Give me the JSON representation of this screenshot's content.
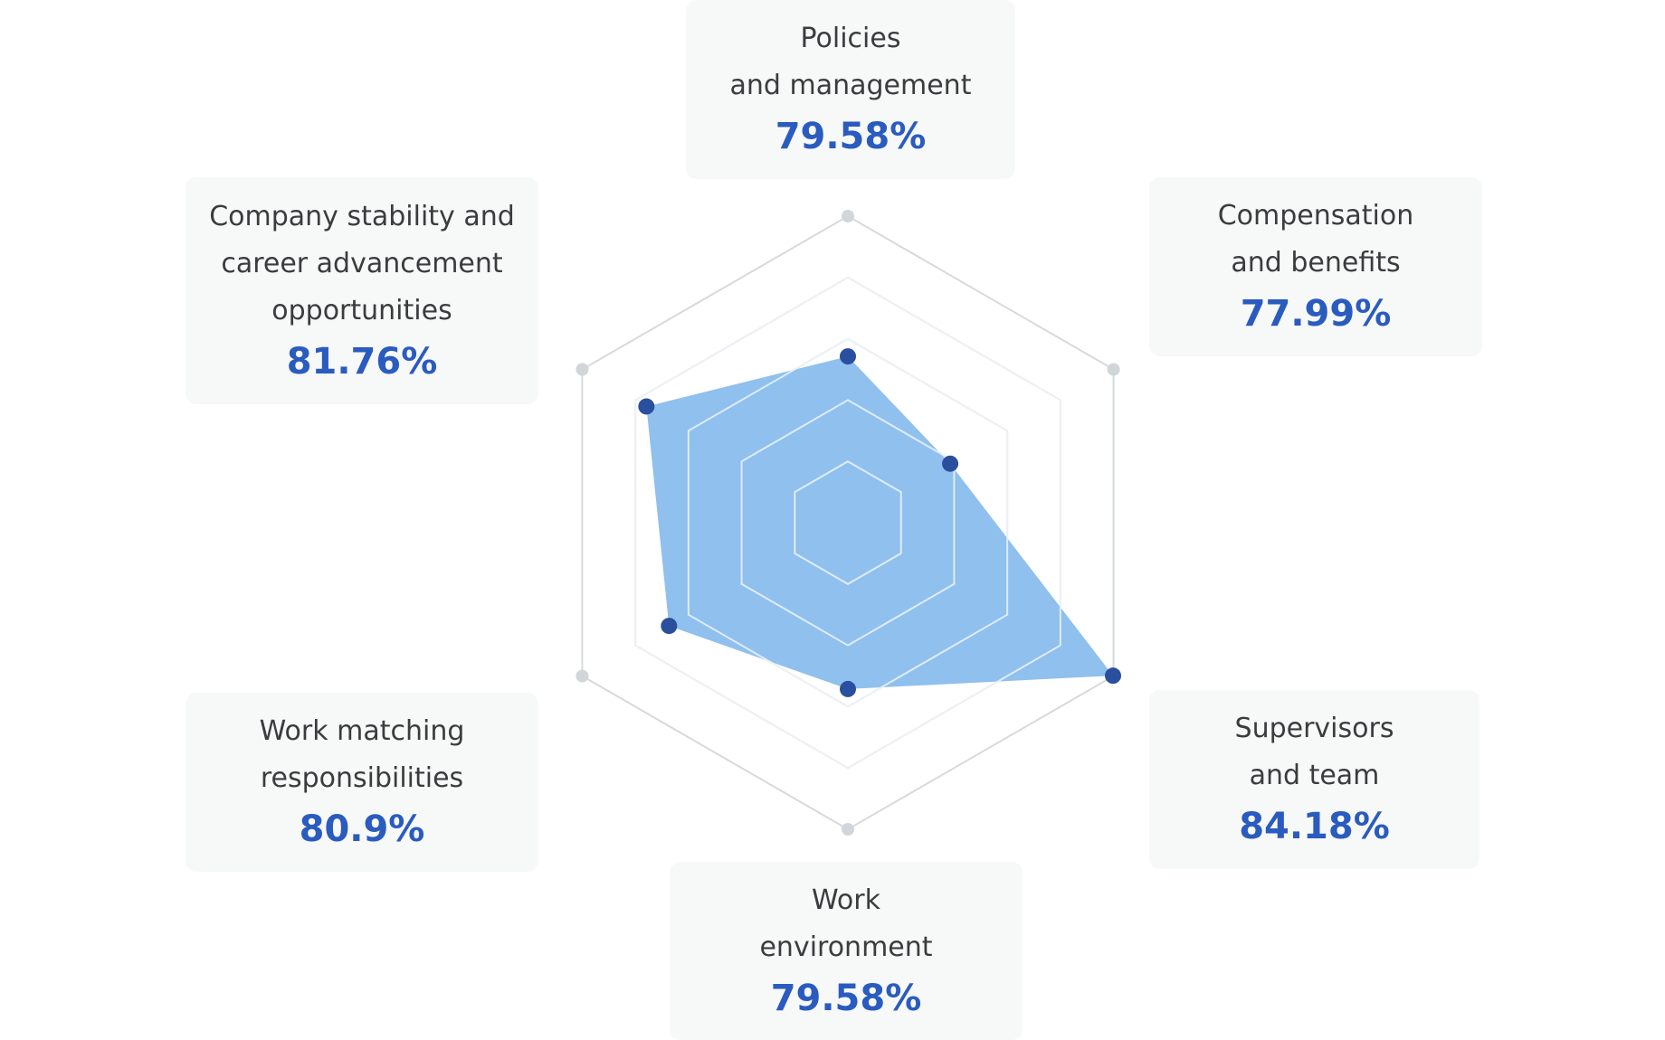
{
  "chart_data": {
    "type": "radar",
    "categories": [
      "Policies\nand management",
      "Compensation\nand benefits",
      "Supervisors\nand team",
      "Work\nenvironment",
      "Work matching\nresponsibilities",
      "Company stability and\ncareer advancement\nopportunities"
    ],
    "values": [
      79.58,
      77.99,
      84.18,
      79.58,
      80.9,
      81.76
    ],
    "value_labels": [
      "79.58%",
      "77.99%",
      "84.18%",
      "79.58%",
      "80.9%",
      "81.76%"
    ],
    "rlim": [
      74.1,
      84.2
    ],
    "rings": 5,
    "colors": {
      "fill": "#8dbfee",
      "point": "#2a4f9e",
      "grid": "#d6dadd",
      "grid_inner": "#f2f6fb",
      "vertex": "#d0d6da",
      "value_text": "#2a5bbf"
    }
  }
}
